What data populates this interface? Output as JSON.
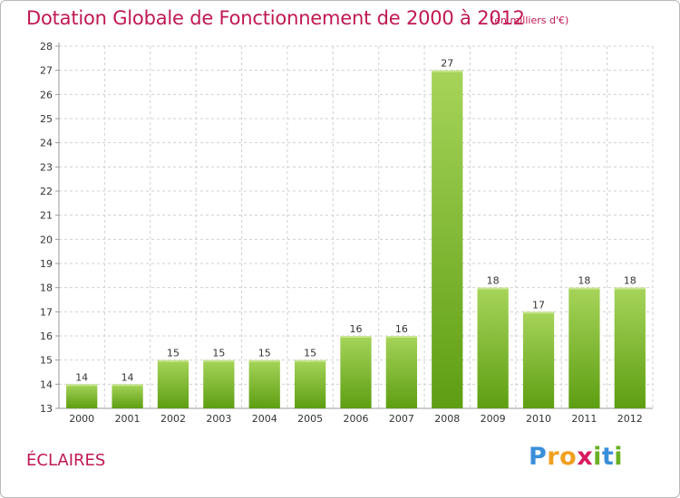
{
  "title": "Dotation Globale de Fonctionnement de 2000 à 2012",
  "subtitle": "(en milliers d'€)",
  "location": "ÉCLAIRES",
  "logo": {
    "text": "Proxiti",
    "letters": [
      {
        "char": "P",
        "color": "#3a8fd9"
      },
      {
        "char": "r",
        "color": "#f0a020"
      },
      {
        "char": "o",
        "color": "#f0a020"
      },
      {
        "char": "x",
        "color": "#d81b60"
      },
      {
        "char": "i",
        "color": "#6ab023"
      },
      {
        "char": "t",
        "color": "#3a8fd9"
      },
      {
        "char": "i",
        "color": "#6ab023"
      }
    ]
  },
  "colors": {
    "accent": "#c0194f",
    "bar_top": "#a6d45a",
    "bar_bottom": "#5e9e12",
    "grid": "#d0d0d0",
    "axis": "#999999"
  },
  "chart_data": {
    "type": "bar",
    "categories": [
      "2000",
      "2001",
      "2002",
      "2003",
      "2004",
      "2005",
      "2006",
      "2007",
      "2008",
      "2009",
      "2010",
      "2011",
      "2012"
    ],
    "values": [
      14,
      14,
      15,
      15,
      15,
      15,
      16,
      16,
      27,
      18,
      17,
      18,
      18
    ],
    "ylim": [
      13,
      28
    ],
    "yticks": [
      13,
      14,
      15,
      16,
      17,
      18,
      19,
      20,
      21,
      22,
      23,
      24,
      25,
      26,
      27,
      28
    ],
    "grid": true,
    "legend": "none"
  }
}
